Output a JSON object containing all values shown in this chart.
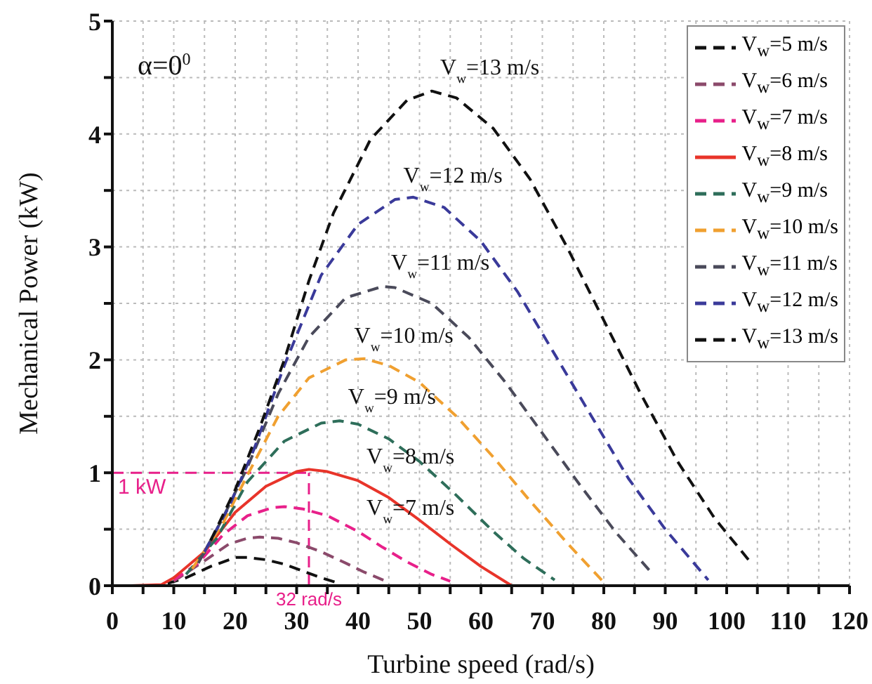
{
  "chart_data": {
    "type": "line",
    "xlabel": "Turbine speed (rad/s)",
    "ylabel": "Mechanical Power (kW)",
    "xlim": [
      0,
      120
    ],
    "xticks": [
      0,
      {
        "value": 5,
        "label": null
      },
      10,
      {
        "value": 15,
        "label": null
      },
      20,
      {
        "value": 25,
        "label": null
      },
      30,
      {
        "value": 35,
        "label": null
      },
      40,
      {
        "value": 45,
        "label": null
      },
      50,
      {
        "value": 55,
        "label": null
      },
      60,
      {
        "value": 65,
        "label": null
      },
      70,
      {
        "value": 75,
        "label": null
      },
      80,
      {
        "value": 85,
        "label": null
      },
      90,
      {
        "value": 95,
        "label": null
      },
      100,
      {
        "value": 105,
        "label": null
      },
      110,
      {
        "value": 115,
        "label": null
      },
      120
    ],
    "ylim": [
      0,
      5
    ],
    "yticks": [
      0,
      {
        "value": 0.5,
        "label": null
      },
      1,
      {
        "value": 1.5,
        "label": null
      },
      2,
      {
        "value": 2.5,
        "label": null
      },
      3,
      {
        "value": 3.5,
        "label": null
      },
      4,
      {
        "value": 4.5,
        "label": null
      },
      5
    ],
    "grid": true,
    "legend": "top right",
    "line_style": "dashed",
    "marker": "none",
    "series": [
      {
        "name": "V$_{w}$=5 m/s",
        "color": "#111111",
        "x": [
          9,
          12,
          16,
          19,
          20,
          22,
          25,
          28,
          31,
          34,
          37
        ],
        "values": [
          0.02,
          0.07,
          0.17,
          0.23,
          0.25,
          0.25,
          0.23,
          0.19,
          0.13,
          0.07,
          0.02
        ]
      },
      {
        "name": "V$_{w}$=6 m/s",
        "color": "#8b4a6b",
        "x": [
          10,
          15,
          19,
          22,
          24,
          27,
          30,
          34,
          38,
          41,
          45
        ],
        "values": [
          0.04,
          0.22,
          0.37,
          0.42,
          0.43,
          0.42,
          0.38,
          0.3,
          0.2,
          0.12,
          0.03
        ]
      },
      {
        "name": "V$_{w}$=7 m/s",
        "color": "#e8208a",
        "x": [
          10,
          14,
          18,
          22,
          26,
          28,
          31,
          35,
          40,
          44,
          48,
          52,
          55
        ],
        "values": [
          0.05,
          0.2,
          0.45,
          0.62,
          0.69,
          0.7,
          0.68,
          0.62,
          0.48,
          0.34,
          0.21,
          0.1,
          0.04
        ]
      },
      {
        "name": "V$_{w}$=8 m/s",
        "color": "#e8342a",
        "line_style": "solid",
        "x": [
          3,
          8,
          10,
          15,
          20,
          25,
          30,
          32,
          35,
          40,
          45,
          50,
          55,
          60,
          65
        ],
        "values": [
          0,
          0.01,
          0.07,
          0.3,
          0.65,
          0.88,
          1.01,
          1.03,
          1.01,
          0.93,
          0.78,
          0.58,
          0.37,
          0.17,
          0
        ]
      },
      {
        "name": "V$_{w}$=9 m/s",
        "color": "#2e6e5a",
        "x": [
          12,
          17,
          22,
          28,
          34,
          37,
          40,
          45,
          50,
          56,
          62,
          67,
          72
        ],
        "values": [
          0.1,
          0.42,
          0.92,
          1.28,
          1.44,
          1.46,
          1.43,
          1.3,
          1.1,
          0.8,
          0.48,
          0.24,
          0.05
        ]
      },
      {
        "name": "V$_{w}$=10 m/s",
        "color": "#f0a030",
        "x": [
          13,
          18,
          22,
          27,
          32,
          38,
          41,
          45,
          50,
          56,
          62,
          68,
          74,
          80
        ],
        "values": [
          0.15,
          0.55,
          0.98,
          1.5,
          1.84,
          2,
          2.01,
          1.95,
          1.8,
          1.5,
          1.14,
          0.75,
          0.38,
          0.03
        ]
      },
      {
        "name": "V$_{w}$=11 m/s",
        "color": "#4a4a5a",
        "x": [
          14,
          18,
          22,
          27,
          32,
          38,
          44,
          46,
          52,
          58,
          64,
          70,
          76,
          82,
          88
        ],
        "values": [
          0.2,
          0.6,
          1.05,
          1.7,
          2.2,
          2.55,
          2.65,
          2.64,
          2.5,
          2.2,
          1.8,
          1.35,
          0.9,
          0.47,
          0.1
        ]
      },
      {
        "name": "V$_{w}$=12 m/s",
        "color": "#3a3a9a",
        "x": [
          15,
          19,
          23,
          28,
          34,
          40,
          46,
          49,
          54,
          60,
          66,
          72,
          78,
          84,
          90,
          97
        ],
        "values": [
          0.3,
          0.7,
          1.2,
          1.95,
          2.75,
          3.2,
          3.42,
          3.44,
          3.35,
          3.05,
          2.6,
          2.05,
          1.5,
          0.95,
          0.5,
          0.05
        ]
      },
      {
        "name": "V$_{w}$=13 m/s",
        "color": "#111111",
        "x": [
          16,
          20,
          24,
          28,
          32,
          36,
          42,
          48,
          52,
          56,
          62,
          68,
          74,
          80,
          86,
          92,
          98,
          104
        ],
        "values": [
          0.4,
          0.85,
          1.4,
          2,
          2.7,
          3.3,
          3.95,
          4.3,
          4.38,
          4.32,
          4.05,
          3.6,
          3,
          2.35,
          1.7,
          1.1,
          0.6,
          0.2
        ]
      }
    ],
    "ref_lines": [
      {
        "axis": "y",
        "value": 1,
        "label": "1 kW",
        "color": "#e8208a",
        "line_style": "dashed"
      },
      {
        "axis": "x",
        "value": 32,
        "label": "32 rad/s",
        "color": "#e8208a",
        "line_style": "dashed"
      }
    ],
    "annotations": [
      "α=0$^{0}$",
      {
        "text": "V$_{w}$=13 m/s",
        "x": 52,
        "y": 4.38
      },
      {
        "text": "V$_{w}$=12 m/s",
        "x": 46,
        "y": 3.42
      },
      {
        "text": "V$_{w}$=11 m/s",
        "x": 44,
        "y": 2.65
      },
      {
        "text": "V$_{w}$=10 m/s",
        "x": 38,
        "y": 2
      },
      {
        "text": "V$_{w}$=9 m/s",
        "x": 37,
        "y": 1.46
      },
      {
        "text": "V$_{w}$=8 m/s",
        "x": 40,
        "y": 0.93
      },
      {
        "text": "V$_{w}$=7 m/s",
        "x": 40,
        "y": 0.48
      }
    ]
  }
}
